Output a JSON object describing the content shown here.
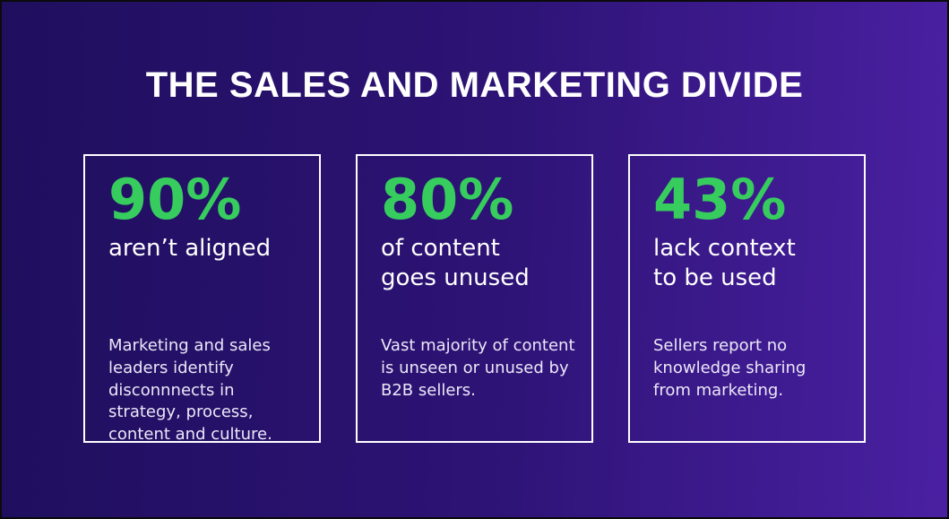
{
  "title": "THE SALES AND MARKETING DIVIDE",
  "colors": {
    "accent_green": "#36cd5e",
    "bg_gradient_left": "#1f0f5e",
    "bg_gradient_mid": "#2d1375",
    "bg_gradient_right": "#4a20a2",
    "card_border": "#ffffff",
    "title_text": "#ffffff",
    "body_text": "#ece7f8"
  },
  "cards": [
    {
      "stat": "90%",
      "label": "aren’t aligned",
      "description": "Marketing and sales\nleaders identify\ndisconnnects in\nstrategy, process,\ncontent and culture."
    },
    {
      "stat": "80%",
      "label": "of content\ngoes unused",
      "description": "Vast majority of content\nis unseen or unused by\nB2B sellers."
    },
    {
      "stat": "43%",
      "label": "lack context\nto be used",
      "description": "Sellers report no\nknowledge sharing\nfrom marketing."
    }
  ],
  "chart_data": {
    "type": "table",
    "title": "THE SALES AND MARKETING DIVIDE",
    "categories": [
      "aren’t aligned",
      "of content goes unused",
      "lack context to be used"
    ],
    "values": [
      90,
      80,
      43
    ],
    "unit": "%",
    "annotations": [
      "Marketing and sales leaders identify disconnnects in strategy, process, content and culture.",
      "Vast majority of content is unseen or unused by B2B sellers.",
      "Sellers report no knowledge sharing from marketing."
    ],
    "legend_position": "none",
    "grid": false
  }
}
